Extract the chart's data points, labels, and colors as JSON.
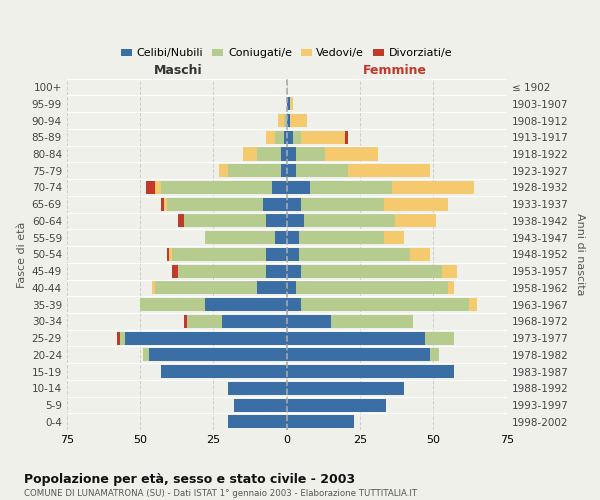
{
  "age_groups": [
    "0-4",
    "5-9",
    "10-14",
    "15-19",
    "20-24",
    "25-29",
    "30-34",
    "35-39",
    "40-44",
    "45-49",
    "50-54",
    "55-59",
    "60-64",
    "65-69",
    "70-74",
    "75-79",
    "80-84",
    "85-89",
    "90-94",
    "95-99",
    "100+"
  ],
  "birth_years": [
    "1998-2002",
    "1993-1997",
    "1988-1992",
    "1983-1987",
    "1978-1982",
    "1973-1977",
    "1968-1972",
    "1963-1967",
    "1958-1962",
    "1953-1957",
    "1948-1952",
    "1943-1947",
    "1938-1942",
    "1933-1937",
    "1928-1932",
    "1923-1927",
    "1918-1922",
    "1913-1917",
    "1908-1912",
    "1903-1907",
    "≤ 1902"
  ],
  "maschi": {
    "celibi": [
      20,
      18,
      20,
      43,
      47,
      55,
      22,
      28,
      10,
      7,
      7,
      4,
      7,
      8,
      5,
      2,
      2,
      1,
      0,
      0,
      0
    ],
    "coniugati": [
      0,
      0,
      0,
      0,
      2,
      2,
      12,
      22,
      35,
      30,
      32,
      24,
      28,
      33,
      38,
      18,
      8,
      3,
      1,
      0,
      0
    ],
    "vedovi": [
      0,
      0,
      0,
      0,
      0,
      0,
      0,
      0,
      1,
      0,
      1,
      0,
      0,
      1,
      2,
      3,
      5,
      3,
      2,
      0,
      0
    ],
    "divorziati": [
      0,
      0,
      0,
      0,
      0,
      1,
      1,
      0,
      0,
      2,
      1,
      0,
      2,
      1,
      3,
      0,
      0,
      0,
      0,
      0,
      0
    ]
  },
  "femmine": {
    "nubili": [
      23,
      34,
      40,
      57,
      49,
      47,
      15,
      5,
      3,
      5,
      4,
      4,
      6,
      5,
      8,
      3,
      3,
      2,
      1,
      1,
      0
    ],
    "coniugate": [
      0,
      0,
      0,
      0,
      3,
      10,
      28,
      57,
      52,
      48,
      38,
      29,
      31,
      28,
      28,
      18,
      10,
      3,
      0,
      0,
      0
    ],
    "vedove": [
      0,
      0,
      0,
      0,
      0,
      0,
      0,
      3,
      2,
      5,
      7,
      7,
      14,
      22,
      28,
      28,
      18,
      15,
      6,
      1,
      0
    ],
    "divorziate": [
      0,
      0,
      0,
      0,
      0,
      0,
      0,
      0,
      0,
      0,
      0,
      0,
      0,
      0,
      0,
      0,
      0,
      1,
      0,
      0,
      0
    ]
  },
  "color_celibi": "#3a6ea5",
  "color_coniugati": "#b5cc8e",
  "color_vedovi": "#f5c96e",
  "color_divorziati": "#c0392b",
  "xlim": 75,
  "title": "Popolazione per età, sesso e stato civile - 2003",
  "subtitle": "COMUNE DI LUNAMATRONA (SU) - Dati ISTAT 1° gennaio 2003 - Elaborazione TUTTITALIA.IT",
  "ylabel_left": "Fasce di età",
  "ylabel_right": "Anni di nascita",
  "xlabel_left": "Maschi",
  "xlabel_right": "Femmine",
  "bg_color": "#f0f0eb",
  "grid_color": "#cccccc"
}
